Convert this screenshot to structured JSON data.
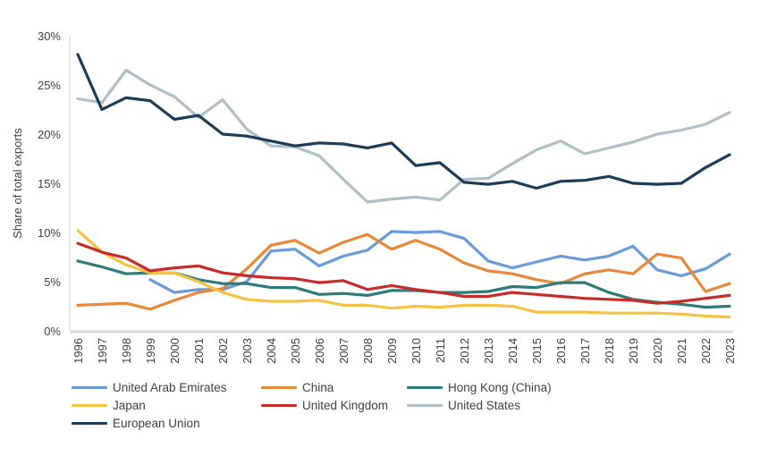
{
  "chart_data": {
    "type": "line",
    "title": "",
    "xlabel": "",
    "ylabel": "Share of total exports",
    "ylim": [
      0,
      30
    ],
    "yticks": [
      "0%",
      "5%",
      "10%",
      "15%",
      "20%",
      "25%",
      "30%"
    ],
    "ytick_values": [
      0,
      5,
      10,
      15,
      20,
      25,
      30
    ],
    "grid": false,
    "legend_position": "bottom",
    "x": [
      "1996",
      "1997",
      "1998",
      "1999",
      "2000",
      "2001",
      "2002",
      "2003",
      "2004",
      "2005",
      "2006",
      "2007",
      "2008",
      "2009",
      "2010",
      "2011",
      "2012",
      "2013",
      "2014",
      "2015",
      "2016",
      "2017",
      "2018",
      "2019",
      "2020",
      "2021",
      "2022",
      "2023"
    ],
    "series": [
      {
        "name": "United Arab Emirates",
        "color": "#6b9bd6",
        "values": [
          null,
          null,
          null,
          5.2,
          3.9,
          4.2,
          4.2,
          5.0,
          8.1,
          8.3,
          6.6,
          7.6,
          8.2,
          10.1,
          10.0,
          10.1,
          9.4,
          7.1,
          6.4,
          7.0,
          7.6,
          7.2,
          7.6,
          8.6,
          6.2,
          5.6,
          6.3,
          7.8
        ]
      },
      {
        "name": "China",
        "color": "#e8883a",
        "values": [
          2.6,
          2.7,
          2.8,
          2.2,
          3.1,
          3.9,
          4.3,
          6.3,
          8.7,
          9.2,
          7.9,
          9.0,
          9.8,
          8.3,
          9.2,
          8.3,
          6.9,
          6.1,
          5.8,
          5.2,
          4.8,
          5.8,
          6.2,
          5.8,
          7.8,
          7.4,
          4.0,
          4.8
        ]
      },
      {
        "name": "Hong Kong (China)",
        "color": "#2f7a7a",
        "values": [
          7.1,
          6.5,
          5.8,
          5.9,
          5.9,
          5.2,
          4.8,
          4.8,
          4.4,
          4.4,
          3.7,
          3.8,
          3.6,
          4.1,
          4.1,
          3.9,
          3.9,
          4.0,
          4.5,
          4.4,
          4.9,
          4.9,
          3.9,
          3.2,
          2.9,
          2.7,
          2.4,
          2.5
        ]
      },
      {
        "name": "Japan",
        "color": "#f5c242",
        "values": [
          10.2,
          8.0,
          6.7,
          5.9,
          5.9,
          5.0,
          3.9,
          3.2,
          3.0,
          3.0,
          3.1,
          2.6,
          2.6,
          2.3,
          2.5,
          2.4,
          2.6,
          2.6,
          2.5,
          1.9,
          1.9,
          1.9,
          1.8,
          1.8,
          1.8,
          1.7,
          1.5,
          1.4
        ]
      },
      {
        "name": "United Kingdom",
        "color": "#c62d2a",
        "values": [
          8.9,
          8.0,
          7.4,
          6.1,
          6.4,
          6.6,
          5.9,
          5.6,
          5.4,
          5.3,
          4.9,
          5.1,
          4.2,
          4.6,
          4.2,
          3.9,
          3.5,
          3.5,
          3.9,
          3.7,
          3.5,
          3.3,
          3.2,
          3.1,
          2.8,
          3.0,
          3.3,
          3.6
        ]
      },
      {
        "name": "United States",
        "color": "#adc0c6",
        "values": [
          23.6,
          23.2,
          26.5,
          25.0,
          23.8,
          21.7,
          23.5,
          20.5,
          18.8,
          18.7,
          17.8,
          15.4,
          13.1,
          13.4,
          13.6,
          13.3,
          15.4,
          15.5,
          17.0,
          18.4,
          19.3,
          18.0,
          18.6,
          19.2,
          20.0,
          20.4,
          21.0,
          22.2
        ]
      },
      {
        "name": "European Union",
        "color": "#1c3d57",
        "values": [
          28.1,
          22.5,
          23.7,
          23.4,
          21.5,
          21.9,
          20.0,
          19.8,
          19.3,
          18.8,
          19.1,
          19.0,
          18.6,
          19.1,
          16.8,
          17.1,
          15.1,
          14.9,
          15.2,
          14.5,
          15.2,
          15.3,
          15.7,
          15.0,
          14.9,
          15.0,
          16.6,
          17.9
        ]
      }
    ]
  }
}
